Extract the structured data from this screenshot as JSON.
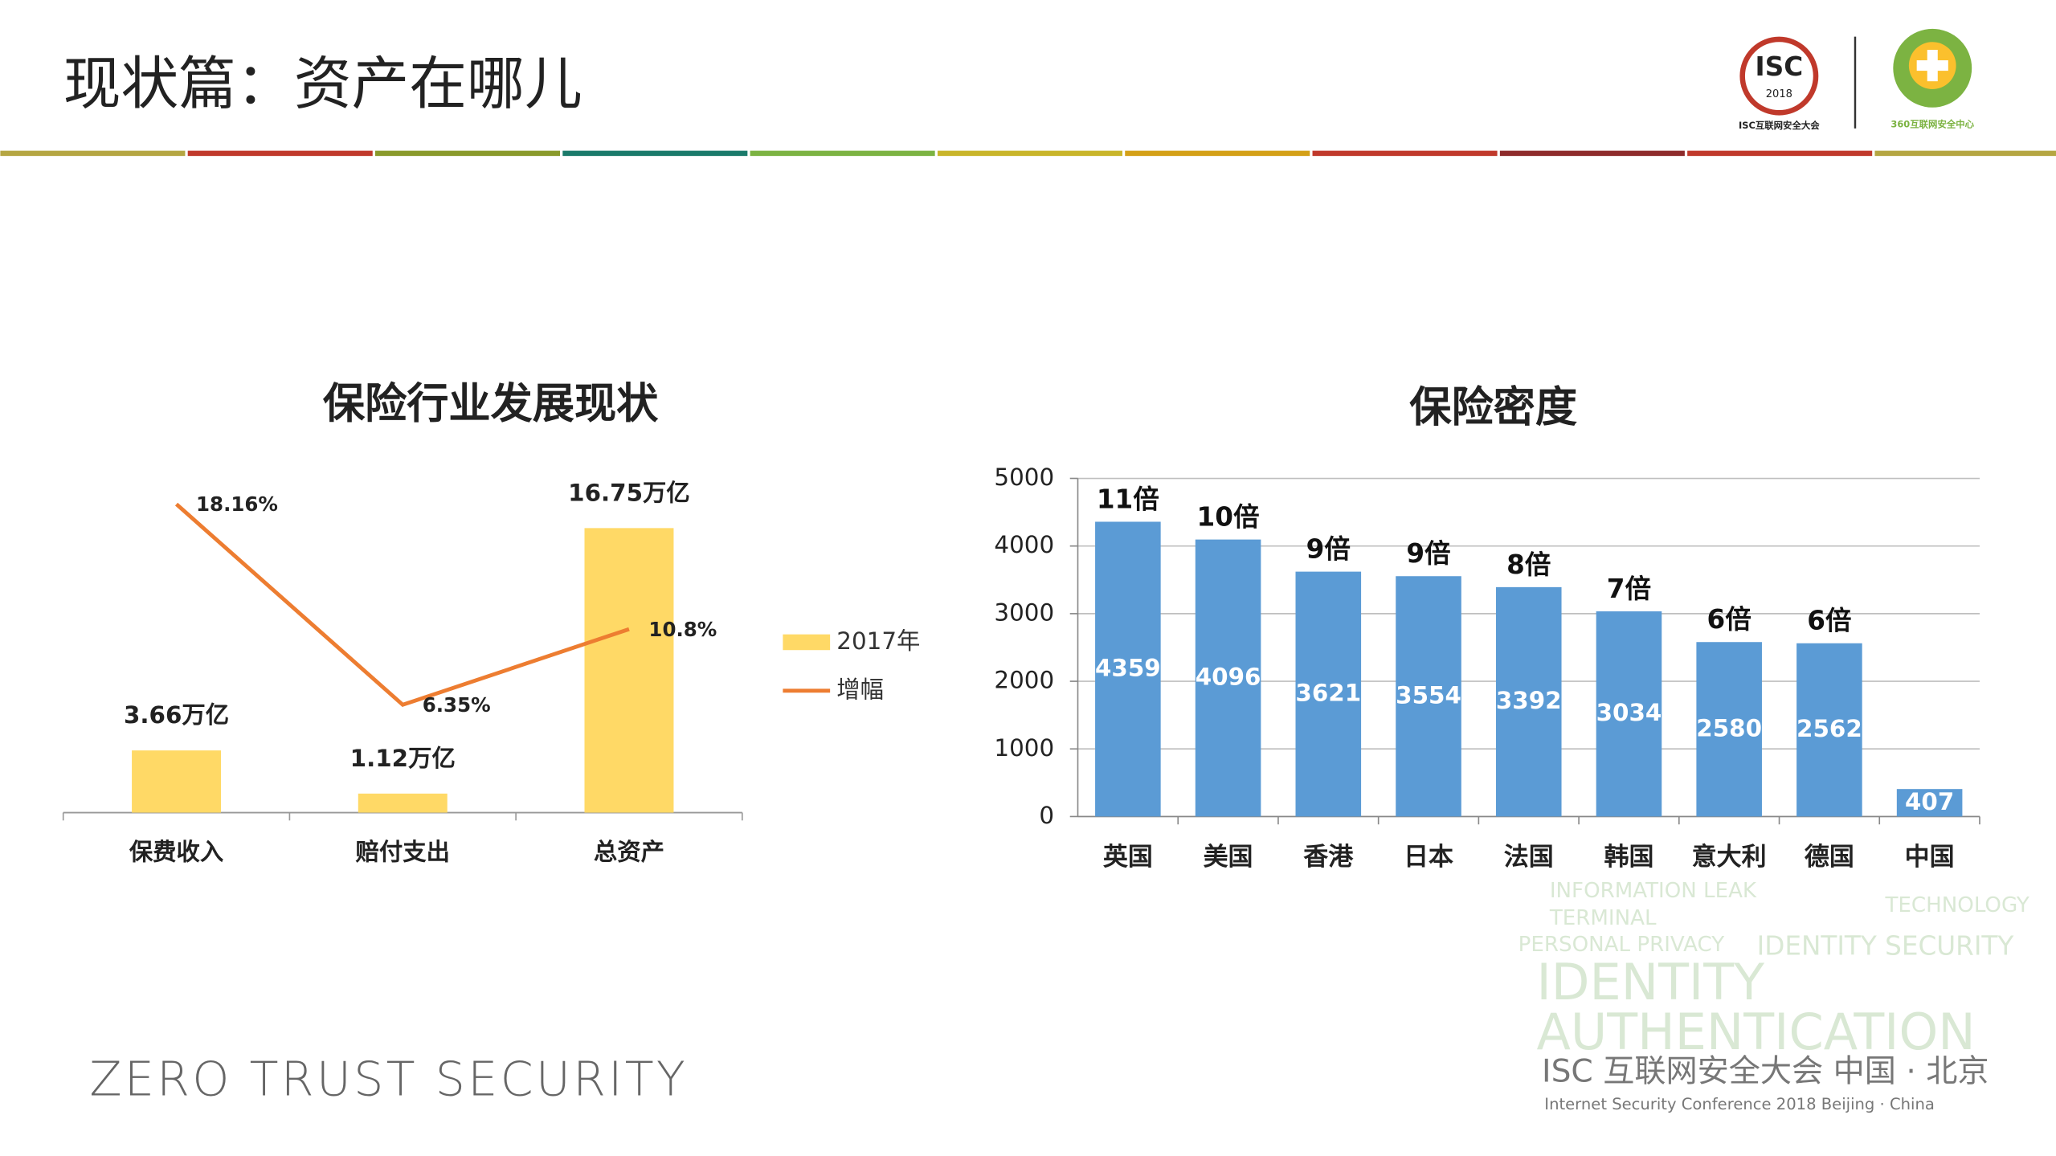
{
  "header": {
    "title": "现状篇：资产在哪儿",
    "logo_isc": "ISC",
    "logo_year": "2018",
    "logo_isc_caption": "ISC互联网安全大会",
    "logo_360_caption": "360互联网安全中心"
  },
  "footer": {
    "slogan": "ZERO TRUST SECURITY",
    "conference_cn": "ISC 互联网安全大会  中国 · 北京",
    "conference_en": "Internet Security Conference 2018  Beijing · China"
  },
  "watermark": [
    "INFORMATION LEAK",
    "TERMINAL",
    "PERSONAL PRIVACY",
    "TECHNOLOGY",
    "IDENTITY SECURITY",
    "IDENTITY",
    "AUTHENTICATION"
  ],
  "chart_data": [
    {
      "type": "bar",
      "title": "保险行业发展现状",
      "categories": [
        "保费收入",
        "赔付支出",
        "总资产"
      ],
      "ylim": [
        0,
        20
      ],
      "legend": "right",
      "series": [
        {
          "name": "2017年",
          "type": "bar",
          "color": "#ffd966",
          "values": [
            3.66,
            1.12,
            16.75
          ],
          "value_labels": [
            "3.66万亿",
            "1.12万亿",
            "16.75万亿"
          ]
        },
        {
          "name": "增幅",
          "type": "line",
          "color": "#ed7d31",
          "values": [
            18.16,
            6.35,
            10.8
          ],
          "value_labels": [
            "18.16%",
            "6.35%",
            "10.8%"
          ]
        }
      ]
    },
    {
      "type": "bar",
      "title": "保险密度",
      "categories": [
        "英国",
        "美国",
        "香港",
        "日本",
        "法国",
        "韩国",
        "意大利",
        "德国",
        "中国"
      ],
      "values": [
        4359,
        4096,
        3621,
        3554,
        3392,
        3034,
        2580,
        2562,
        407
      ],
      "color": "#5b9bd5",
      "annotations": [
        "11倍",
        "10倍",
        "9倍",
        "9倍",
        "8倍",
        "7倍",
        "6倍",
        "6倍"
      ],
      "ylim": [
        0,
        5000
      ],
      "yticks": [
        0,
        1000,
        2000,
        3000,
        4000,
        5000
      ],
      "grid": true
    }
  ]
}
